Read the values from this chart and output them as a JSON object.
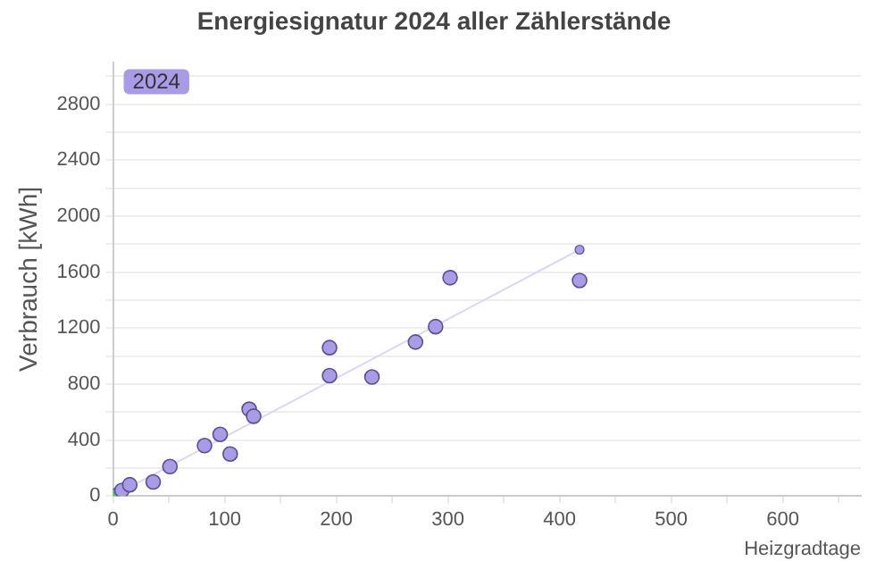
{
  "chart_data": {
    "type": "scatter",
    "title": "Energiesignatur 2024 aller Zählerstände",
    "xlabel": "Heizgradtage",
    "ylabel": "Verbrauch [kWh]",
    "series": [
      {
        "name": "2024",
        "color": "#a99be6",
        "colors": [
          "#4cc26a",
          "#a99be6",
          "#a99be6",
          "#a99be6",
          "#a99be6",
          "#a99be6",
          "#a99be6",
          "#a99be6",
          "#a99be6",
          "#a99be6",
          "#a99be6",
          "#a99be6",
          "#a99be6",
          "#a99be6",
          "#a99be6",
          "#a99be6",
          "#a99be6"
        ],
        "x": [
          0,
          8,
          15,
          36,
          51,
          82,
          96,
          105,
          122,
          126,
          194,
          194,
          232,
          271,
          289,
          302,
          418
        ],
        "values": [
          0,
          40,
          80,
          100,
          210,
          360,
          440,
          300,
          620,
          570,
          1060,
          860,
          850,
          1100,
          1210,
          1560,
          1540
        ]
      },
      {
        "type": "line",
        "color": "#dcd6f7",
        "x": [
          0,
          418
        ],
        "values": [
          0,
          1760
        ]
      }
    ],
    "xlim": [
      0,
      670
    ],
    "ylim": [
      0,
      3100
    ],
    "xticks": [
      0,
      {
        "value": 50,
        "label": null
      },
      100,
      {
        "value": 150,
        "label": null
      },
      200,
      {
        "value": 250,
        "label": null
      },
      300,
      {
        "value": 350,
        "label": null
      },
      400,
      {
        "value": 450,
        "label": null
      },
      500,
      {
        "value": 550,
        "label": null
      },
      600,
      {
        "value": 650,
        "label": null
      }
    ],
    "yticks": [
      0,
      {
        "value": 200,
        "label": null
      },
      400,
      {
        "value": 600,
        "label": null
      },
      800,
      {
        "value": 1000,
        "label": null
      },
      1200,
      {
        "value": 1400,
        "label": null
      },
      1600,
      {
        "value": 1800,
        "label": null
      },
      2000,
      {
        "value": 2200,
        "label": null
      },
      2400,
      {
        "value": 2600,
        "label": null
      },
      2800,
      {
        "value": 3000,
        "label": null
      }
    ],
    "grid": "y",
    "legend": "top left",
    "marker": "circle"
  }
}
